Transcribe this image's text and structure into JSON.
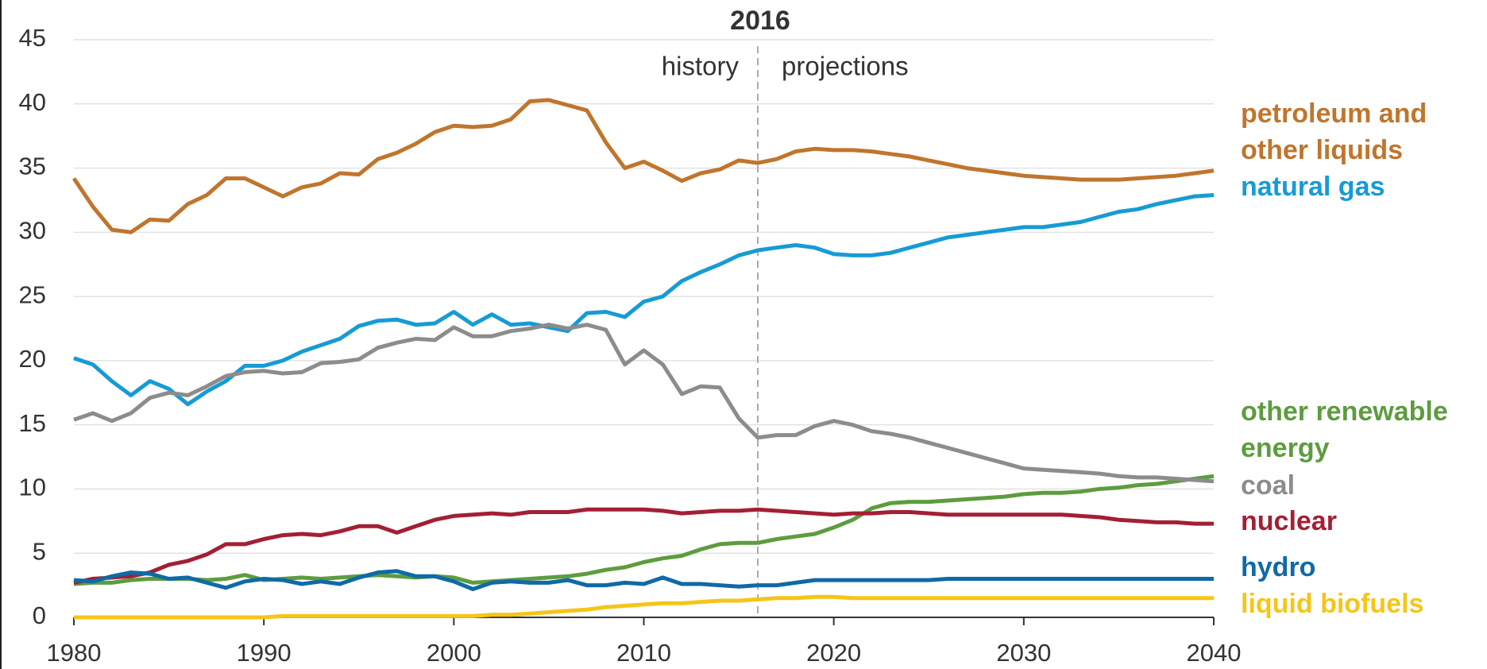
{
  "chart_data": {
    "type": "line",
    "x": [
      1980,
      1981,
      1982,
      1983,
      1984,
      1985,
      1986,
      1987,
      1988,
      1989,
      1990,
      1991,
      1992,
      1993,
      1994,
      1995,
      1996,
      1997,
      1998,
      1999,
      2000,
      2001,
      2002,
      2003,
      2004,
      2005,
      2006,
      2007,
      2008,
      2009,
      2010,
      2011,
      2012,
      2013,
      2014,
      2015,
      2016,
      2017,
      2018,
      2019,
      2020,
      2021,
      2022,
      2023,
      2024,
      2025,
      2026,
      2027,
      2028,
      2029,
      2030,
      2031,
      2032,
      2033,
      2034,
      2035,
      2036,
      2037,
      2038,
      2039,
      2040
    ],
    "xlim": [
      1980,
      2040
    ],
    "xticks": [
      1980,
      1990,
      2000,
      2010,
      2020,
      2030,
      2040
    ],
    "ylim": [
      0,
      45
    ],
    "yticks": [
      0,
      5,
      10,
      15,
      20,
      25,
      30,
      35,
      40,
      45
    ],
    "grid": true,
    "divider": {
      "x": 2016,
      "left_label": "history",
      "right_label": "projections"
    },
    "series": [
      {
        "name": "petroleum and other liquids",
        "color": "#c0752d",
        "values": [
          34.2,
          32.0,
          30.2,
          30.0,
          31.0,
          30.9,
          32.2,
          32.9,
          34.2,
          34.2,
          33.5,
          32.8,
          33.5,
          33.8,
          34.6,
          34.5,
          35.7,
          36.2,
          36.9,
          37.8,
          38.3,
          38.2,
          38.3,
          38.8,
          40.2,
          40.3,
          39.9,
          39.5,
          37.0,
          35.0,
          35.5,
          34.8,
          34.0,
          34.6,
          34.9,
          35.6,
          35.4,
          35.7,
          36.3,
          36.5,
          36.4,
          36.4,
          36.3,
          36.1,
          35.9,
          35.6,
          35.3,
          35.0,
          34.8,
          34.6,
          34.4,
          34.3,
          34.2,
          34.1,
          34.1,
          34.1,
          34.2,
          34.3,
          34.4,
          34.6,
          34.8
        ]
      },
      {
        "name": "natural gas",
        "color": "#169bd5",
        "values": [
          20.2,
          19.7,
          18.4,
          17.3,
          18.4,
          17.8,
          16.6,
          17.6,
          18.4,
          19.6,
          19.6,
          20.0,
          20.7,
          21.2,
          21.7,
          22.7,
          23.1,
          23.2,
          22.8,
          22.9,
          23.8,
          22.8,
          23.6,
          22.8,
          22.9,
          22.6,
          22.3,
          23.7,
          23.8,
          23.4,
          24.6,
          25.0,
          26.2,
          26.9,
          27.5,
          28.2,
          28.6,
          28.8,
          29.0,
          28.8,
          28.3,
          28.2,
          28.2,
          28.4,
          28.8,
          29.2,
          29.6,
          29.8,
          30.0,
          30.2,
          30.4,
          30.4,
          30.6,
          30.8,
          31.2,
          31.6,
          31.8,
          32.2,
          32.5,
          32.8,
          32.9
        ]
      },
      {
        "name": "other renewable energy",
        "color": "#5d9c3f",
        "values": [
          2.6,
          2.7,
          2.7,
          2.9,
          3.0,
          3.0,
          3.0,
          2.9,
          3.0,
          3.3,
          2.9,
          3.0,
          3.1,
          3.0,
          3.1,
          3.2,
          3.3,
          3.2,
          3.1,
          3.2,
          3.1,
          2.7,
          2.8,
          2.9,
          3.0,
          3.1,
          3.2,
          3.4,
          3.7,
          3.9,
          4.3,
          4.6,
          4.8,
          5.3,
          5.7,
          5.8,
          5.8,
          6.1,
          6.3,
          6.5,
          7.0,
          7.6,
          8.5,
          8.9,
          9.0,
          9.0,
          9.1,
          9.2,
          9.3,
          9.4,
          9.6,
          9.7,
          9.7,
          9.8,
          10.0,
          10.1,
          10.3,
          10.4,
          10.6,
          10.8,
          11.0
        ]
      },
      {
        "name": "coal",
        "color": "#8c8c8c",
        "values": [
          15.4,
          15.9,
          15.3,
          15.9,
          17.1,
          17.5,
          17.3,
          18.0,
          18.8,
          19.1,
          19.2,
          19.0,
          19.1,
          19.8,
          19.9,
          20.1,
          21.0,
          21.4,
          21.7,
          21.6,
          22.6,
          21.9,
          21.9,
          22.3,
          22.5,
          22.8,
          22.5,
          22.8,
          22.4,
          19.7,
          20.8,
          19.7,
          17.4,
          18.0,
          17.9,
          15.5,
          14.0,
          14.2,
          14.2,
          14.9,
          15.3,
          15.0,
          14.5,
          14.3,
          14.0,
          13.6,
          13.2,
          12.8,
          12.4,
          12.0,
          11.6,
          11.5,
          11.4,
          11.3,
          11.2,
          11.0,
          10.9,
          10.9,
          10.8,
          10.7,
          10.6
        ]
      },
      {
        "name": "nuclear",
        "color": "#a31f34",
        "values": [
          2.7,
          3.0,
          3.1,
          3.2,
          3.5,
          4.1,
          4.4,
          4.9,
          5.7,
          5.7,
          6.1,
          6.4,
          6.5,
          6.4,
          6.7,
          7.1,
          7.1,
          6.6,
          7.1,
          7.6,
          7.9,
          8.0,
          8.1,
          8.0,
          8.2,
          8.2,
          8.2,
          8.4,
          8.4,
          8.4,
          8.4,
          8.3,
          8.1,
          8.2,
          8.3,
          8.3,
          8.4,
          8.3,
          8.2,
          8.1,
          8.0,
          8.1,
          8.1,
          8.2,
          8.2,
          8.1,
          8.0,
          8.0,
          8.0,
          8.0,
          8.0,
          8.0,
          8.0,
          7.9,
          7.8,
          7.6,
          7.5,
          7.4,
          7.4,
          7.3,
          7.3
        ]
      },
      {
        "name": "hydro",
        "color": "#0f6aa6",
        "values": [
          2.9,
          2.8,
          3.2,
          3.5,
          3.4,
          3.0,
          3.1,
          2.7,
          2.3,
          2.8,
          3.0,
          2.9,
          2.6,
          2.8,
          2.6,
          3.1,
          3.5,
          3.6,
          3.2,
          3.2,
          2.8,
          2.2,
          2.7,
          2.8,
          2.7,
          2.7,
          2.9,
          2.5,
          2.5,
          2.7,
          2.6,
          3.1,
          2.6,
          2.6,
          2.5,
          2.4,
          2.5,
          2.5,
          2.7,
          2.9,
          2.9,
          2.9,
          2.9,
          2.9,
          2.9,
          2.9,
          3.0,
          3.0,
          3.0,
          3.0,
          3.0,
          3.0,
          3.0,
          3.0,
          3.0,
          3.0,
          3.0,
          3.0,
          3.0,
          3.0,
          3.0
        ]
      },
      {
        "name": "liquid biofuels",
        "color": "#f5c518",
        "values": [
          0.0,
          0.0,
          0.0,
          0.0,
          0.0,
          0.0,
          0.0,
          0.0,
          0.0,
          0.0,
          0.0,
          0.1,
          0.1,
          0.1,
          0.1,
          0.1,
          0.1,
          0.1,
          0.1,
          0.1,
          0.1,
          0.1,
          0.2,
          0.2,
          0.3,
          0.4,
          0.5,
          0.6,
          0.8,
          0.9,
          1.0,
          1.1,
          1.1,
          1.2,
          1.3,
          1.3,
          1.4,
          1.5,
          1.5,
          1.6,
          1.6,
          1.5,
          1.5,
          1.5,
          1.5,
          1.5,
          1.5,
          1.5,
          1.5,
          1.5,
          1.5,
          1.5,
          1.5,
          1.5,
          1.5,
          1.5,
          1.5,
          1.5,
          1.5,
          1.5,
          1.5
        ]
      }
    ]
  }
}
